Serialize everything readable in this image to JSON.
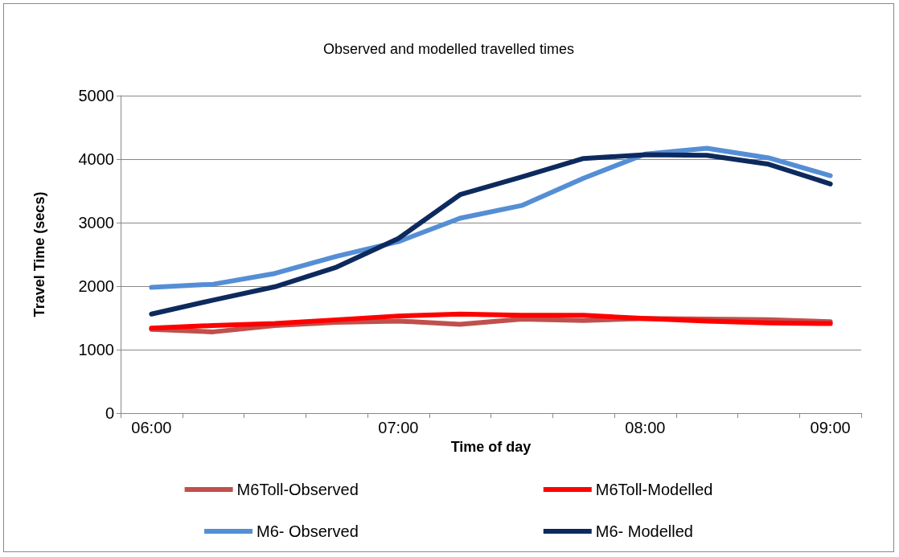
{
  "chart_data": {
    "type": "line",
    "title": "Observed and modelled travelled times",
    "xlabel": "Time of day",
    "ylabel": "Travel Time (secs)",
    "categories": [
      "06:00",
      null,
      null,
      null,
      "07:00",
      null,
      null,
      null,
      "08:00",
      null,
      null,
      "09:00"
    ],
    "series": [
      {
        "name": "M6Toll-Observed",
        "color": "#c0504d",
        "values": [
          1320,
          1280,
          1380,
          1430,
          1450,
          1400,
          1480,
          1460,
          1490,
          1480,
          1470,
          1440
        ]
      },
      {
        "name": "M6Toll-Modelled",
        "color": "#ff0000",
        "values": [
          1340,
          1380,
          1410,
          1470,
          1530,
          1560,
          1540,
          1540,
          1490,
          1450,
          1420,
          1410
        ]
      },
      {
        "name": "M6- Observed",
        "color": "#558ed5",
        "values": [
          1980,
          2030,
          2200,
          2470,
          2700,
          3070,
          3270,
          3700,
          4080,
          4170,
          4020,
          3740
        ]
      },
      {
        "name": "M6- Modelled",
        "color": "#0d2a5e",
        "values": [
          1560,
          1780,
          1990,
          2300,
          2750,
          3440,
          3720,
          4010,
          4070,
          4060,
          3920,
          3610
        ]
      }
    ],
    "ylim": [
      0,
      5000
    ],
    "yticks": [
      0,
      1000,
      2000,
      3000,
      4000,
      5000
    ],
    "grid": "y",
    "legend": "bottom",
    "marker": "none",
    "line_style": "solid"
  }
}
